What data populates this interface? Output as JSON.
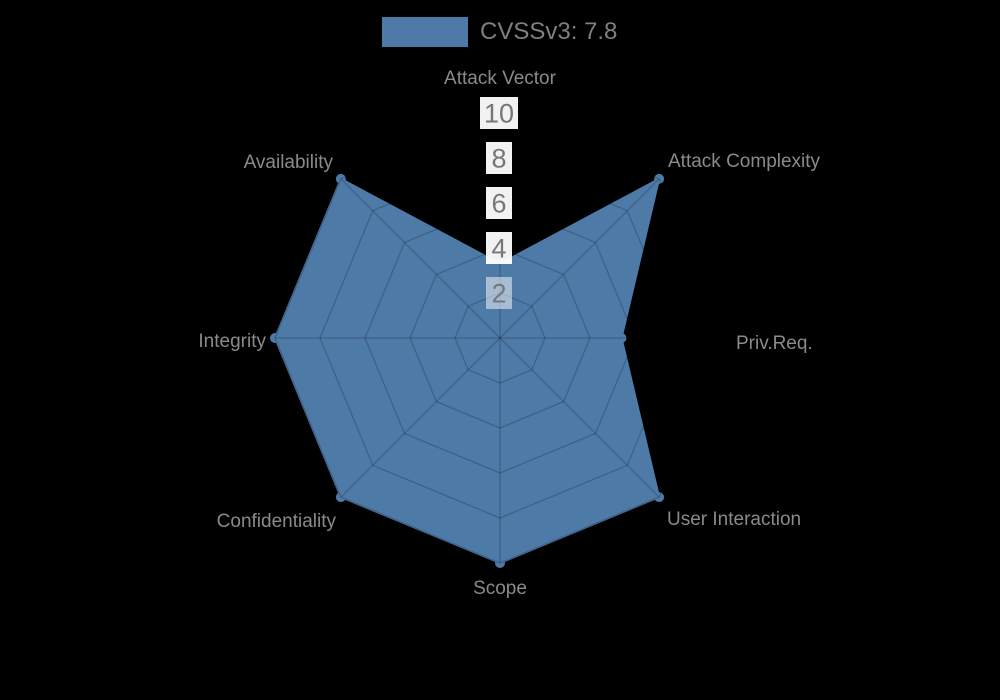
{
  "legend": {
    "label": "CVSSv3: 7.8"
  },
  "chart_data": {
    "type": "radar",
    "title": "",
    "legend_label": "CVSSv3: 7.8",
    "legend_position": "top",
    "axes": [
      "Attack Vector",
      "Attack Complexity",
      "Priv.Req.",
      "User Interaction",
      "Scope",
      "Confidentiality",
      "Integrity",
      "Availability"
    ],
    "series": [
      {
        "name": "CVSSv3: 7.8",
        "values": [
          3.3,
          10,
          5.4,
          10,
          10,
          10,
          10,
          10
        ]
      }
    ],
    "range": [
      0,
      10
    ],
    "ticks": [
      2,
      4,
      6,
      8,
      10
    ],
    "grid": true,
    "colors": {
      "series_fill": "#4e7aa8",
      "background": "#000000",
      "axis_label": "#8a8a8a",
      "tick_label": "#777777",
      "tick_box": "#ffffff",
      "legend_text": "#7f7f7f",
      "grid_line": "rgba(0,0,0,0.2)"
    }
  }
}
